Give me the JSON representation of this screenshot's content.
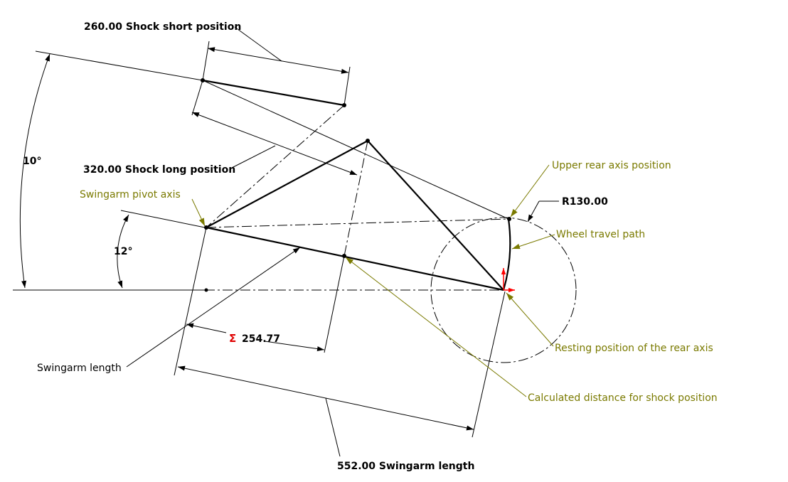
{
  "colors": {
    "line": "#000000",
    "annotation": "#7a7a00",
    "sigma": "#e00000",
    "axis_red": "#ff0000"
  },
  "dimensions": {
    "shock_short": "260.00 Shock short position",
    "shock_long": "320.00 Shock long position",
    "swingarm_length_dim": "552.00 Swingarm length",
    "calculated_value": "254.77",
    "sigma_symbol": "Σ",
    "radius": "R130.00",
    "angle_10": "10°",
    "angle_12": "12°"
  },
  "annotations": {
    "swingarm_pivot_axis": "Swingarm pivot axis",
    "upper_rear_axis_position": "Upper rear axis position",
    "wheel_travel_path": "Wheel travel path",
    "resting_position_rear_axis": "Resting position of the rear axis",
    "calculated_distance": "Calculated distance for shock position",
    "swingarm_length_label": "Swingarm length"
  }
}
